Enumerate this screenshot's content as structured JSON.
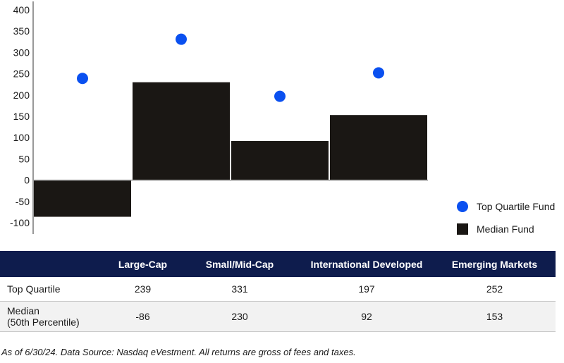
{
  "colors": {
    "dot": "#0a50f0",
    "bar": "#1a1714",
    "header_bg": "#0e1c4d"
  },
  "legend": {
    "dot_label": "Top Quartile Fund",
    "bar_label": "Median Fund"
  },
  "chart_data": {
    "type": "bar",
    "categories": [
      "Large-Cap",
      "Small/Mid-Cap",
      "International Developed",
      "Emerging Markets"
    ],
    "series": [
      {
        "name": "Median Fund",
        "mark": "bar",
        "values": [
          -86,
          230,
          92,
          153
        ]
      },
      {
        "name": "Top Quartile Fund",
        "mark": "dot",
        "values": [
          239,
          331,
          197,
          252
        ]
      }
    ],
    "yticks": [
      400,
      350,
      300,
      250,
      200,
      150,
      100,
      50,
      0,
      -50,
      -100
    ],
    "ylim": [
      -100,
      400
    ],
    "grid": false,
    "legend_position": "right"
  },
  "table": {
    "headers": [
      "",
      "Large-Cap",
      "Small/Mid-Cap",
      "International Developed",
      "Emerging Markets"
    ],
    "rows": [
      {
        "label_lines": [
          "Top Quartile"
        ],
        "values": [
          "239",
          "331",
          "197",
          "252"
        ]
      },
      {
        "label_lines": [
          "Median",
          "(50th Percentile)"
        ],
        "values": [
          "-86",
          "230",
          "92",
          "153"
        ]
      }
    ]
  },
  "footnote": "As of 6/30/24. Data Source: Nasdaq eVestment. All returns are gross of fees and taxes."
}
